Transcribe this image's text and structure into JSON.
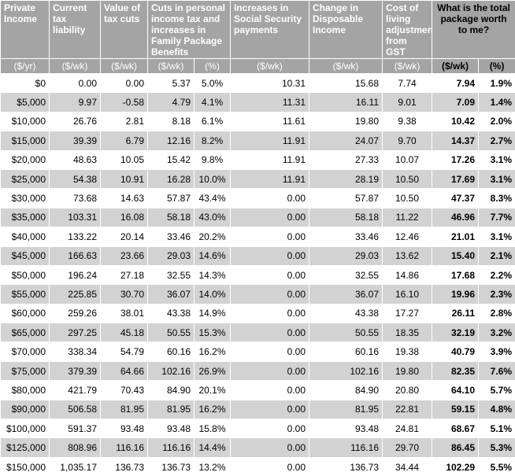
{
  "header": {
    "columns": [
      "Private Income",
      "Current tax liability",
      "Value of tax cuts",
      "Cuts in personal income tax and increases in Family Package Benefits",
      "Increases in Social Security payments",
      "Change in Disposable Income",
      "Cost of living adjustment from GST",
      "What is the total package worth to me?"
    ],
    "units": [
      "($/yr)",
      "($/wk)",
      "($/wk)",
      "($/wk)",
      "(%)",
      "($/wk)",
      "($/wk)",
      "($/wk)",
      "($/wk)",
      "(%)"
    ]
  },
  "table": {
    "rows": [
      [
        "$0",
        "0.00",
        "0.00",
        "5.37",
        "5.0%",
        "10.31",
        "15.68",
        "7.74",
        "7.94",
        "1.9%"
      ],
      [
        "$5,000",
        "9.97",
        "-0.58",
        "4.79",
        "4.1%",
        "11.31",
        "16.11",
        "9.01",
        "7.09",
        "1.4%"
      ],
      [
        "$10,000",
        "26.76",
        "2.81",
        "8.18",
        "6.1%",
        "11.61",
        "19.80",
        "9.38",
        "10.42",
        "2.0%"
      ],
      [
        "$15,000",
        "39.39",
        "6.79",
        "12.16",
        "8.2%",
        "11.91",
        "24.07",
        "9.70",
        "14.37",
        "2.7%"
      ],
      [
        "$20,000",
        "48.63",
        "10.05",
        "15.42",
        "9.8%",
        "11.91",
        "27.33",
        "10.07",
        "17.26",
        "3.1%"
      ],
      [
        "$25,000",
        "54.38",
        "10.91",
        "16.28",
        "10.0%",
        "11.91",
        "28.19",
        "10.50",
        "17.69",
        "3.1%"
      ],
      [
        "$30,000",
        "73.68",
        "14.63",
        "57.87",
        "43.4%",
        "0.00",
        "57.87",
        "10.50",
        "47.37",
        "8.3%"
      ],
      [
        "$35,000",
        "103.31",
        "16.08",
        "58.18",
        "43.0%",
        "0.00",
        "58.18",
        "11.22",
        "46.96",
        "7.7%"
      ],
      [
        "$40,000",
        "133.22",
        "20.14",
        "33.46",
        "20.2%",
        "0.00",
        "33.46",
        "12.46",
        "21.01",
        "3.1%"
      ],
      [
        "$45,000",
        "166.63",
        "23.66",
        "29.03",
        "14.6%",
        "0.00",
        "29.03",
        "13.62",
        "15.40",
        "2.1%"
      ],
      [
        "$50,000",
        "196.24",
        "27.18",
        "32.55",
        "14.3%",
        "0.00",
        "32.55",
        "14.86",
        "17.68",
        "2.2%"
      ],
      [
        "$55,000",
        "225.85",
        "30.70",
        "36.07",
        "14.0%",
        "0.00",
        "36.07",
        "16.10",
        "19.96",
        "2.3%"
      ],
      [
        "$60,000",
        "259.26",
        "38.01",
        "43.38",
        "14.9%",
        "0.00",
        "43.38",
        "17.27",
        "26.11",
        "2.8%"
      ],
      [
        "$65,000",
        "297.25",
        "45.18",
        "50.55",
        "15.3%",
        "0.00",
        "50.55",
        "18.35",
        "32.19",
        "3.2%"
      ],
      [
        "$70,000",
        "338.34",
        "54.79",
        "60.16",
        "16.2%",
        "0.00",
        "60.16",
        "19.38",
        "40.79",
        "3.9%"
      ],
      [
        "$75,000",
        "379.39",
        "64.66",
        "102.16",
        "26.9%",
        "0.00",
        "102.16",
        "19.80",
        "82.35",
        "7.6%"
      ],
      [
        "$80,000",
        "421.79",
        "70.43",
        "84.90",
        "20.1%",
        "0.00",
        "84.90",
        "20.80",
        "64.10",
        "5.7%"
      ],
      [
        "$90,000",
        "506.58",
        "81.95",
        "81.95",
        "16.2%",
        "0.00",
        "81.95",
        "22.81",
        "59.15",
        "4.8%"
      ],
      [
        "$100,000",
        "591.37",
        "93.48",
        "93.48",
        "15.8%",
        "0.00",
        "93.48",
        "24.81",
        "68.67",
        "5.1%"
      ],
      [
        "$125,000",
        "808.96",
        "116.16",
        "116.16",
        "14.4%",
        "0.00",
        "116.16",
        "29.70",
        "86.45",
        "5.3%"
      ],
      [
        "$150,000",
        "1,035.17",
        "136.73",
        "136.73",
        "13.2%",
        "0.00",
        "136.73",
        "34.44",
        "102.29",
        "5.5%"
      ]
    ]
  }
}
